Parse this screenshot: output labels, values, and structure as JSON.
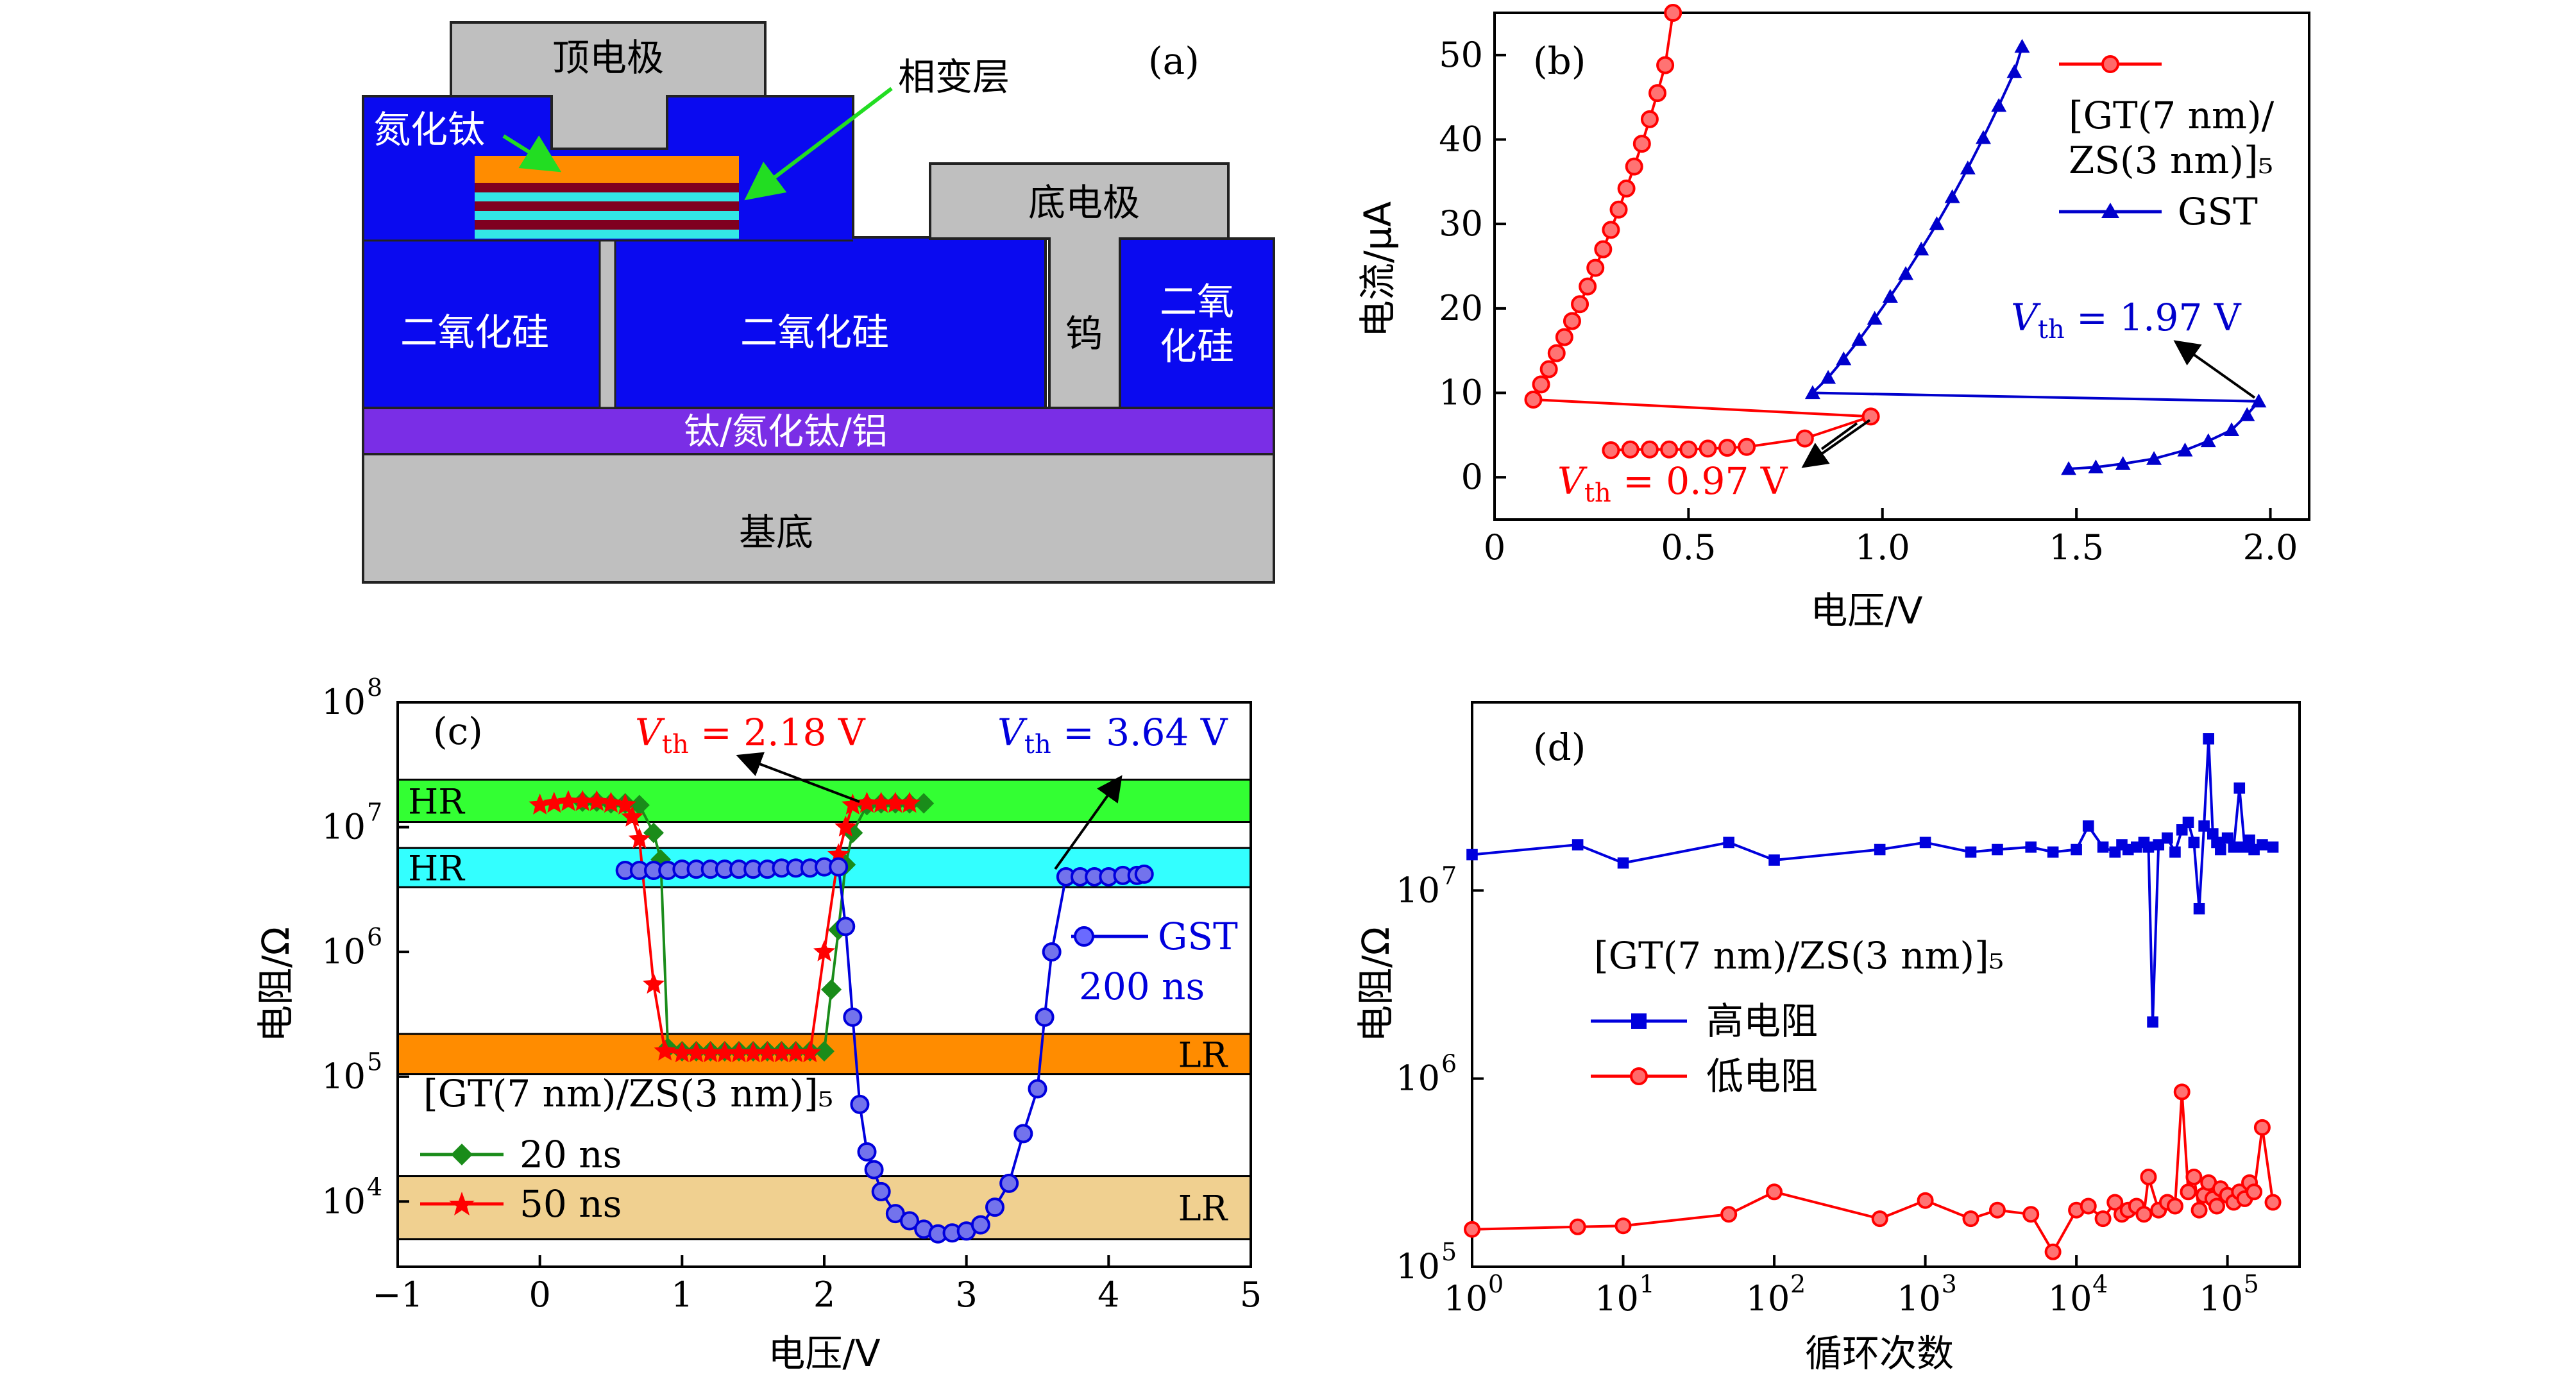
{
  "panel_a": {
    "tag": "(a)",
    "top_electrode": "顶电极",
    "phase_change_layer": "相变层",
    "tin_label": "氮化钛",
    "bottom_electrode": "底电极",
    "sio2_left": "二氧化硅",
    "sio2_mid": "二氧化硅",
    "w_label": "钨",
    "sio2_right_1": "二氧",
    "sio2_right_2": "化硅",
    "metal_stack": "钛/氮化钛/铝",
    "substrate": "基底",
    "colors": {
      "tin": "#0a0af0",
      "gray": "#bfbfbf",
      "purple": "#7a2ee6",
      "orange": "#ff8c00",
      "maroon": "#800020",
      "cyan": "#33e6e6",
      "arrow": "#22dd22"
    }
  },
  "chart_data": [
    {
      "type": "line",
      "panel": "(b)",
      "xlabel": "电压/V",
      "ylabel": "电流/μA",
      "xlim": [
        0,
        2.1
      ],
      "ylim": [
        -5,
        55
      ],
      "xticks": [
        "0",
        "0.5",
        "1.0",
        "1.5",
        "2.0"
      ],
      "yticks": [
        "0",
        "10",
        "20",
        "30",
        "40",
        "50"
      ],
      "legend": {
        "placement": "top-right",
        "entries": [
          "[GT(7 nm)/",
          "ZS(3 nm)]₅",
          "GST"
        ]
      },
      "series": [
        {
          "name": "[GT(7 nm)/ZS(3 nm)]₅",
          "color": "#ff0000",
          "marker": "circle",
          "x": [
            0.3,
            0.35,
            0.4,
            0.45,
            0.5,
            0.55,
            0.6,
            0.65,
            0.8,
            0.97,
            0.1,
            0.12,
            0.14,
            0.16,
            0.18,
            0.2,
            0.22,
            0.24,
            0.26,
            0.28,
            0.3,
            0.32,
            0.34,
            0.36,
            0.38,
            0.4,
            0.42,
            0.44,
            0.46
          ],
          "y": [
            3.2,
            3.3,
            3.3,
            3.3,
            3.3,
            3.4,
            3.5,
            3.6,
            4.6,
            7.2,
            9.2,
            11.0,
            12.8,
            14.7,
            16.6,
            18.5,
            20.5,
            22.6,
            24.8,
            27.0,
            29.3,
            31.7,
            34.2,
            36.8,
            39.5,
            42.4,
            45.5,
            48.8,
            55.0
          ]
        },
        {
          "name": "GST",
          "color": "#0000cc",
          "marker": "triangle",
          "x": [
            1.48,
            1.55,
            1.62,
            1.7,
            1.78,
            1.84,
            1.9,
            1.94,
            1.97,
            0.82,
            0.86,
            0.9,
            0.94,
            0.98,
            1.02,
            1.06,
            1.1,
            1.14,
            1.18,
            1.22,
            1.26,
            1.3,
            1.34,
            1.36
          ],
          "y": [
            1.0,
            1.2,
            1.6,
            2.2,
            3.2,
            4.3,
            5.6,
            7.4,
            9.0,
            10.0,
            11.8,
            14.0,
            16.3,
            18.8,
            21.4,
            24.1,
            27.0,
            30.0,
            33.2,
            36.6,
            40.2,
            44.0,
            48.0,
            51.0
          ]
        }
      ],
      "annotations": [
        {
          "text_main": "V",
          "text_sub": "th",
          "text_rest": " = 0.97 V",
          "color": "#ff0000"
        },
        {
          "text_main": "V",
          "text_sub": "th",
          "text_rest": " = 1.97 V",
          "color": "#0000cc"
        }
      ]
    },
    {
      "type": "line",
      "panel": "(c)",
      "xlabel": "电压/V",
      "ylabel": "电阻/Ω",
      "xlim": [
        -1,
        5
      ],
      "ylim": [
        3000,
        100000000
      ],
      "yscale": "log",
      "xticks": [
        "−1",
        "0",
        "1",
        "2",
        "3",
        "4",
        "5"
      ],
      "ytick_values": [
        10000,
        100000,
        1000000,
        10000000,
        100000000
      ],
      "ytick_exponents": [
        "4",
        "5",
        "6",
        "7",
        "8"
      ],
      "ytick_base": "10",
      "bands": [
        {
          "label": "HR",
          "low": 11000000,
          "high": 24000000,
          "color": "#33ff33"
        },
        {
          "label": "HR",
          "low": 3300000,
          "high": 6800000,
          "color": "#33ffff"
        },
        {
          "label": "LR",
          "low": 105000,
          "high": 220000,
          "color": "#ff8c00"
        },
        {
          "label": "LR",
          "low": 5000,
          "high": 16000,
          "color": "#f0d090"
        }
      ],
      "series": [
        {
          "name": "20 ns",
          "color": "#1a8c1a",
          "marker": "diamond",
          "x": [
            0.3,
            0.4,
            0.5,
            0.6,
            0.7,
            0.8,
            0.85,
            0.9,
            1.0,
            1.1,
            1.2,
            1.3,
            1.4,
            1.5,
            1.6,
            1.7,
            1.8,
            1.9,
            2.0,
            2.05,
            2.1,
            2.15,
            2.2,
            2.3,
            2.4,
            2.5,
            2.6,
            2.7
          ],
          "y": [
            16000000,
            16000000,
            15500000,
            15500000,
            15000000,
            9000000,
            5500000,
            170000,
            160000,
            160000,
            160000,
            160000,
            160000,
            160000,
            160000,
            160000,
            160000,
            160000,
            160000,
            500000,
            1500000,
            5000000,
            9000000,
            15000000,
            15500000,
            15500000,
            15500000,
            15500000
          ]
        },
        {
          "name": "50 ns",
          "color": "#ff0000",
          "marker": "star",
          "x": [
            0.0,
            0.1,
            0.2,
            0.3,
            0.4,
            0.5,
            0.6,
            0.65,
            0.7,
            0.8,
            0.88,
            1.0,
            1.1,
            1.2,
            1.3,
            1.4,
            1.5,
            1.6,
            1.7,
            1.8,
            1.9,
            2.0,
            2.1,
            2.15,
            2.2,
            2.3,
            2.4,
            2.5,
            2.6
          ],
          "y": [
            15000000,
            15500000,
            16000000,
            16000000,
            16000000,
            15500000,
            15000000,
            12000000,
            8000000,
            550000,
            160000,
            155000,
            155000,
            155000,
            155000,
            155000,
            155000,
            155000,
            155000,
            155000,
            155000,
            1000000,
            6000000,
            10000000,
            15000000,
            15500000,
            15500000,
            15500000,
            15500000
          ]
        },
        {
          "name": "GST 200 ns",
          "color": "#0000dd",
          "marker": "circle",
          "x": [
            0.6,
            0.7,
            0.8,
            0.9,
            1.0,
            1.1,
            1.2,
            1.3,
            1.4,
            1.5,
            1.6,
            1.7,
            1.8,
            1.9,
            2.0,
            2.1,
            2.15,
            2.2,
            2.25,
            2.3,
            2.35,
            2.4,
            2.5,
            2.6,
            2.7,
            2.8,
            2.9,
            3.0,
            3.1,
            3.2,
            3.3,
            3.4,
            3.5,
            3.55,
            3.6,
            3.7,
            3.8,
            3.9,
            4.0,
            4.1,
            4.2,
            4.25
          ],
          "y": [
            4500000,
            4500000,
            4500000,
            4500000,
            4600000,
            4600000,
            4600000,
            4600000,
            4600000,
            4600000,
            4600000,
            4700000,
            4700000,
            4700000,
            4800000,
            4800000,
            1600000,
            300000,
            60000,
            25000,
            18000,
            12000,
            8000,
            7000,
            6000,
            5500,
            5600,
            5800,
            6500,
            9000,
            14000,
            35000,
            80000,
            300000,
            1000000,
            4000000,
            4000000,
            4000000,
            4000000,
            4100000,
            4100000,
            4200000
          ]
        }
      ],
      "legend_group": "[GT(7 nm)/ZS(3 nm)]₅",
      "gst_label_1": "GST",
      "gst_label_2": "200 ns",
      "annotations": [
        {
          "text_main": "V",
          "text_sub": "th",
          "text_rest": " = 2.18 V",
          "color": "#ff0000"
        },
        {
          "text_main": "V",
          "text_sub": "th",
          "text_rest": " = 3.64 V",
          "color": "#0000dd"
        }
      ]
    },
    {
      "type": "line",
      "panel": "(d)",
      "xlabel": "循环次数",
      "ylabel": "电阻/Ω",
      "xscale": "log",
      "yscale": "log",
      "xlim": [
        1,
        300000
      ],
      "ylim": [
        100000,
        100000000
      ],
      "xtick_values": [
        1,
        10,
        100,
        1000,
        10000,
        100000
      ],
      "xtick_exponents": [
        "0",
        "1",
        "2",
        "3",
        "4",
        "5"
      ],
      "ytick_values": [
        100000,
        1000000,
        10000000
      ],
      "ytick_exponents": [
        "5",
        "6",
        "7"
      ],
      "tick_base": "10",
      "legend_group": "[GT(7 nm)/ZS(3 nm)]₅",
      "series": [
        {
          "name": "高电阻",
          "color": "#0000dd",
          "marker": "square",
          "x": [
            1,
            5,
            10,
            50,
            100,
            500,
            1000,
            2000,
            3000,
            5000,
            7000,
            10000,
            12000,
            15000,
            18000,
            20000,
            22000,
            25000,
            28000,
            30000,
            32000,
            35000,
            40000,
            45000,
            50000,
            55000,
            60000,
            65000,
            70000,
            75000,
            80000,
            85000,
            90000,
            100000,
            110000,
            120000,
            130000,
            140000,
            150000,
            170000,
            200000
          ],
          "y": [
            15500000,
            17500000,
            14000000,
            18000000,
            14500000,
            16500000,
            18000000,
            16000000,
            16500000,
            17000000,
            16000000,
            16500000,
            22000000,
            17000000,
            16000000,
            17500000,
            16500000,
            17000000,
            18000000,
            17000000,
            2000000,
            17500000,
            19000000,
            16000000,
            21000000,
            23000000,
            18000000,
            8000000,
            22000000,
            64000000,
            20000000,
            18000000,
            16500000,
            19000000,
            17000000,
            35000000,
            17000000,
            18500000,
            16500000,
            17500000,
            17000000
          ]
        },
        {
          "name": "低电阻",
          "color": "#ff0000",
          "marker": "circle",
          "x": [
            1,
            5,
            10,
            50,
            100,
            500,
            1000,
            2000,
            3000,
            5000,
            7000,
            10000,
            12000,
            15000,
            18000,
            20000,
            22000,
            25000,
            28000,
            30000,
            35000,
            40000,
            45000,
            50000,
            55000,
            60000,
            65000,
            70000,
            75000,
            80000,
            85000,
            90000,
            100000,
            110000,
            120000,
            130000,
            140000,
            150000,
            170000,
            200000
          ],
          "y": [
            158000,
            163000,
            165000,
            190000,
            250000,
            180000,
            225000,
            180000,
            200000,
            190000,
            120000,
            200000,
            210000,
            180000,
            220000,
            190000,
            200000,
            210000,
            190000,
            300000,
            200000,
            220000,
            210000,
            850000,
            250000,
            300000,
            200000,
            240000,
            280000,
            230000,
            210000,
            260000,
            240000,
            220000,
            250000,
            230000,
            280000,
            250000,
            550000,
            220000
          ]
        }
      ]
    }
  ]
}
